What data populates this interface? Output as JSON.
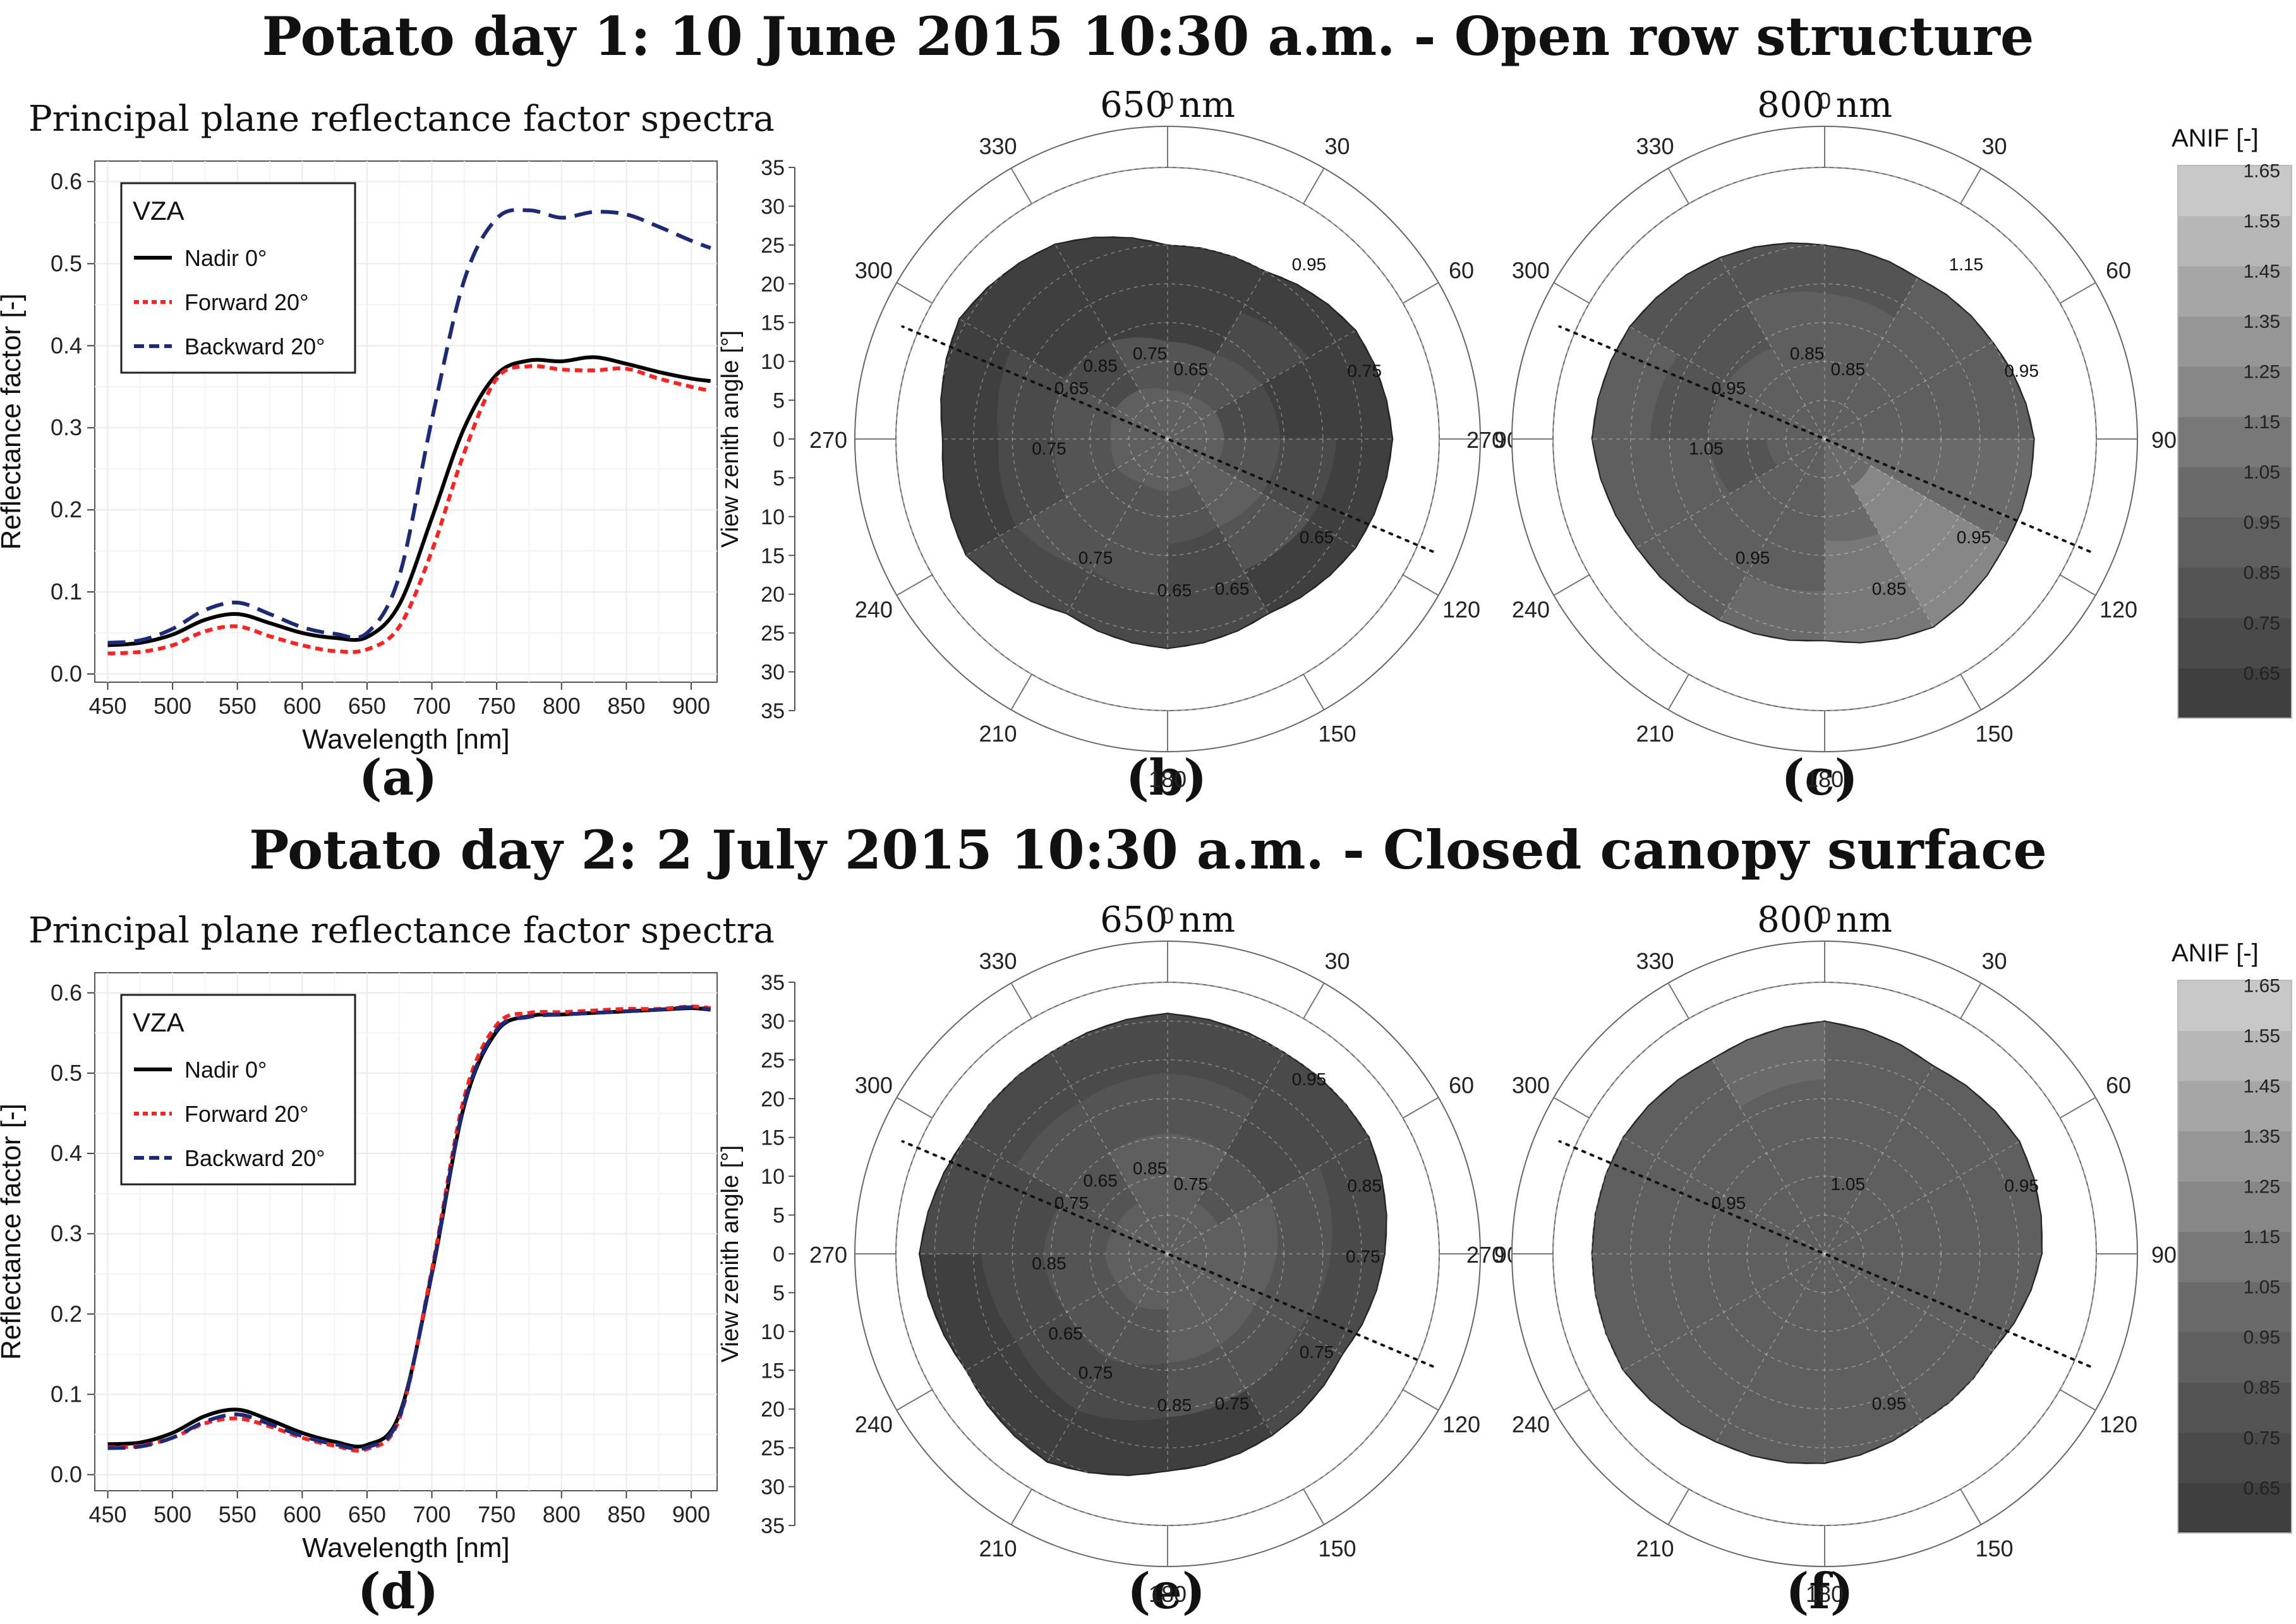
{
  "rows": [
    {
      "title": "Potato day 1: 10 June 2015 10:30 a.m. - Open row structure",
      "spectra_title": "Principal plane reflectance factor spectra",
      "polar_titles": [
        "650 nm",
        "800 nm"
      ],
      "panel_labels": [
        "(a)",
        "(b)",
        "(c)"
      ],
      "colorbar_title": "ANIF [-]"
    },
    {
      "title": "Potato day 2: 2 July 2015 10:30 a.m. - Closed canopy surface",
      "spectra_title": "Principal plane reflectance factor spectra",
      "polar_titles": [
        "650 nm",
        "800 nm"
      ],
      "panel_labels": [
        "(d)",
        "(e)",
        "(f)"
      ],
      "colorbar_title": "ANIF [-]"
    }
  ],
  "colors": {
    "nadir": "#000000",
    "forward": "#ff2020",
    "backward": "#1e2a78",
    "panel_bg": "#ffffff",
    "grid": "#ebebeb"
  },
  "chart_data": [
    {
      "id": "a",
      "type": "line",
      "title": "Principal plane reflectance factor spectra",
      "xlabel": "Wavelength [nm]",
      "ylabel": "Reflectance factor [-]",
      "xlim": [
        440,
        920
      ],
      "ylim": [
        -0.01,
        0.625
      ],
      "xticks": [
        450,
        500,
        550,
        600,
        650,
        700,
        750,
        800,
        850,
        900
      ],
      "yticks": [
        0.0,
        0.1,
        0.2,
        0.3,
        0.4,
        0.5,
        0.6
      ],
      "legend_title": "VZA",
      "legend_position": "top-left",
      "x": [
        450,
        475,
        500,
        525,
        550,
        575,
        600,
        625,
        650,
        675,
        700,
        725,
        750,
        775,
        800,
        825,
        850,
        875,
        900,
        915
      ],
      "series": [
        {
          "name": "Nadir 0°",
          "style": "solid",
          "values": [
            0.035,
            0.038,
            0.048,
            0.066,
            0.073,
            0.062,
            0.05,
            0.044,
            0.045,
            0.085,
            0.19,
            0.3,
            0.365,
            0.382,
            0.381,
            0.386,
            0.378,
            0.368,
            0.36,
            0.357
          ]
        },
        {
          "name": "Forward 20°",
          "style": "dotted",
          "values": [
            0.025,
            0.027,
            0.035,
            0.052,
            0.058,
            0.046,
            0.035,
            0.028,
            0.03,
            0.058,
            0.15,
            0.27,
            0.36,
            0.375,
            0.371,
            0.37,
            0.372,
            0.36,
            0.35,
            0.345
          ]
        },
        {
          "name": "Backward 20°",
          "style": "dashed",
          "values": [
            0.038,
            0.041,
            0.055,
            0.078,
            0.087,
            0.073,
            0.057,
            0.049,
            0.05,
            0.12,
            0.31,
            0.48,
            0.555,
            0.565,
            0.556,
            0.563,
            0.56,
            0.545,
            0.528,
            0.519
          ]
        }
      ]
    },
    {
      "id": "b",
      "type": "heatmap",
      "subtype": "polar-contour",
      "title": "650 nm",
      "ylabel": "View zenith angle [°]",
      "rlim": [
        0,
        35
      ],
      "r_ticks": [
        35,
        30,
        25,
        20,
        15,
        10,
        5,
        0,
        5,
        10,
        15,
        20,
        25,
        30,
        35
      ],
      "azimuth_ticks": [
        0,
        30,
        60,
        90,
        120,
        150,
        180,
        210,
        240,
        270,
        300,
        330
      ],
      "contour_levels": [
        0.65,
        0.75,
        0.85,
        0.95
      ],
      "contour_labels": [
        "0.65",
        "0.65",
        "0.65",
        "0.75",
        "0.75",
        "0.75",
        "0.65",
        "0.75",
        "0.95",
        "0.65",
        "0.85"
      ],
      "principal_plane_azimuth": [
        113,
        293
      ],
      "coverage_zenith_by_azimuth": [
        25,
        25,
        28,
        29,
        28,
        26,
        27,
        26,
        30,
        29,
        31,
        29
      ],
      "grid": [
        [
          0.62,
          0.65,
          0.64,
          0.63,
          0.66,
          0.72,
          0.7,
          0.72,
          0.66,
          0.64,
          0.62,
          0.63
        ],
        [
          0.68,
          0.7,
          0.68,
          0.76,
          0.8,
          0.78,
          0.82,
          0.8,
          0.76,
          0.74,
          0.66,
          0.66
        ],
        [
          0.85,
          0.82,
          0.78,
          0.86,
          0.9,
          0.88,
          0.88,
          0.84,
          0.84,
          0.82,
          0.76,
          0.8
        ],
        [
          0.95,
          0.93,
          0.92,
          0.96,
          0.95,
          0.94,
          0.92,
          0.9,
          0.92,
          0.94,
          0.9,
          0.94
        ]
      ]
    },
    {
      "id": "c",
      "type": "heatmap",
      "subtype": "polar-contour",
      "title": "800 nm",
      "rlim": [
        0,
        35
      ],
      "azimuth_ticks": [
        0,
        30,
        60,
        90,
        120,
        150,
        180,
        210,
        240,
        270,
        300,
        330
      ],
      "contour_levels": [
        0.85,
        0.95,
        1.05,
        1.15,
        1.25
      ],
      "contour_labels": [
        "0.85",
        "0.85",
        "0.95",
        "0.95",
        "0.95",
        "0.85",
        "0.95",
        "1.05",
        "1.15"
      ],
      "principal_plane_azimuth": [
        113,
        293
      ],
      "coverage_zenith_by_azimuth": [
        25,
        24,
        25,
        27,
        27,
        28,
        26,
        27,
        28,
        30,
        29,
        27
      ],
      "grid": [
        [
          0.86,
          0.92,
          0.95,
          1.05,
          1.2,
          1.1,
          1.0,
          0.96,
          0.94,
          0.92,
          0.86,
          0.88
        ],
        [
          0.92,
          0.94,
          0.96,
          1.05,
          1.28,
          1.15,
          0.98,
          0.94,
          0.9,
          0.88,
          0.86,
          0.9
        ],
        [
          0.94,
          0.95,
          0.97,
          1.08,
          1.22,
          1.08,
          0.97,
          0.9,
          0.86,
          0.9,
          0.92,
          0.93
        ],
        [
          0.96,
          0.96,
          0.98,
          1.02,
          1.06,
          1.0,
          0.97,
          0.94,
          0.92,
          0.94,
          0.95,
          0.96
        ]
      ]
    },
    {
      "id": "d",
      "type": "line",
      "title": "Principal plane reflectance factor spectra",
      "xlabel": "Wavelength [nm]",
      "ylabel": "Reflectance factor [-]",
      "xlim": [
        440,
        920
      ],
      "ylim": [
        -0.02,
        0.625
      ],
      "xticks": [
        450,
        500,
        550,
        600,
        650,
        700,
        750,
        800,
        850,
        900
      ],
      "yticks": [
        0.0,
        0.1,
        0.2,
        0.3,
        0.4,
        0.5,
        0.6
      ],
      "legend_title": "VZA",
      "legend_position": "top-left",
      "x": [
        450,
        475,
        500,
        525,
        550,
        575,
        600,
        625,
        650,
        675,
        700,
        725,
        750,
        775,
        800,
        825,
        850,
        875,
        900,
        915
      ],
      "series": [
        {
          "name": "Nadir 0°",
          "style": "solid",
          "values": [
            0.038,
            0.04,
            0.052,
            0.073,
            0.081,
            0.068,
            0.052,
            0.041,
            0.037,
            0.075,
            0.25,
            0.46,
            0.552,
            0.571,
            0.573,
            0.575,
            0.577,
            0.579,
            0.581,
            0.579
          ]
        },
        {
          "name": "Forward 20°",
          "style": "dotted",
          "values": [
            0.034,
            0.036,
            0.046,
            0.064,
            0.07,
            0.06,
            0.046,
            0.036,
            0.032,
            0.07,
            0.255,
            0.47,
            0.56,
            0.575,
            0.576,
            0.578,
            0.58,
            0.58,
            0.583,
            0.581
          ]
        },
        {
          "name": "Backward 20°",
          "style": "dashed",
          "values": [
            0.033,
            0.035,
            0.046,
            0.066,
            0.075,
            0.063,
            0.048,
            0.038,
            0.034,
            0.072,
            0.252,
            0.462,
            0.554,
            0.57,
            0.573,
            0.575,
            0.577,
            0.579,
            0.582,
            0.579
          ]
        }
      ]
    },
    {
      "id": "e",
      "type": "heatmap",
      "subtype": "polar-contour",
      "title": "650 nm",
      "ylabel": "View zenith angle [°]",
      "rlim": [
        0,
        35
      ],
      "r_ticks": [
        35,
        30,
        25,
        20,
        15,
        10,
        5,
        0,
        5,
        10,
        15,
        20,
        25,
        30,
        35
      ],
      "azimuth_ticks": [
        0,
        30,
        60,
        90,
        120,
        150,
        180,
        210,
        240,
        270,
        300,
        330
      ],
      "contour_levels": [
        0.65,
        0.75,
        0.85,
        0.95
      ],
      "contour_labels": [
        "0.75",
        "0.75",
        "0.75",
        "0.85",
        "0.75",
        "0.85",
        "0.75",
        "0.85",
        "0.95",
        "0.85",
        "0.65",
        "0.75",
        "0.65"
      ],
      "principal_plane_azimuth": [
        113,
        293
      ],
      "coverage_zenith_by_azimuth": [
        31,
        30,
        30,
        28,
        26,
        27,
        28,
        31,
        30,
        32,
        30,
        30
      ],
      "grid": [
        [
          0.7,
          0.74,
          0.72,
          0.76,
          0.78,
          0.68,
          0.66,
          0.64,
          0.64,
          0.7,
          0.72,
          0.7
        ],
        [
          0.82,
          0.78,
          0.8,
          0.84,
          0.86,
          0.8,
          0.74,
          0.7,
          0.72,
          0.76,
          0.8,
          0.8
        ],
        [
          0.92,
          0.88,
          0.9,
          0.92,
          0.94,
          0.9,
          0.84,
          0.8,
          0.82,
          0.86,
          0.88,
          0.9
        ],
        [
          0.95,
          0.92,
          0.95,
          0.96,
          0.96,
          0.94,
          0.92,
          0.9,
          0.92,
          0.94,
          0.95,
          0.96
        ]
      ]
    },
    {
      "id": "f",
      "type": "heatmap",
      "subtype": "polar-contour",
      "title": "800 nm",
      "rlim": [
        0,
        35
      ],
      "azimuth_ticks": [
        0,
        30,
        60,
        90,
        120,
        150,
        180,
        210,
        240,
        270,
        300,
        330
      ],
      "contour_levels": [
        0.95,
        1.05
      ],
      "contour_labels": [
        "1.05",
        "0.95",
        "0.95",
        "0.95"
      ],
      "principal_plane_azimuth": [
        113,
        293
      ],
      "coverage_zenith_by_azimuth": [
        30,
        28,
        29,
        28,
        25,
        25,
        27,
        28,
        30,
        30,
        30,
        29
      ],
      "grid": [
        [
          0.99,
          0.98,
          0.99,
          0.98,
          0.96,
          0.97,
          0.99,
          0.98,
          0.99,
          0.98,
          0.99,
          1.0
        ],
        [
          0.98,
          0.99,
          0.97,
          0.98,
          0.99,
          0.99,
          0.98,
          0.97,
          0.99,
          0.99,
          0.98,
          0.98
        ],
        [
          0.99,
          0.98,
          0.98,
          0.97,
          0.98,
          0.99,
          0.98,
          0.99,
          0.98,
          0.97,
          0.99,
          0.98
        ],
        [
          0.98,
          0.99,
          0.99,
          0.98,
          0.99,
          0.98,
          0.99,
          0.98,
          0.99,
          0.99,
          0.98,
          0.99
        ]
      ]
    },
    {
      "id": "colorbar",
      "type": "heatmap",
      "subtype": "colorbar",
      "title": "ANIF [-]",
      "levels": [
        0.6,
        0.7,
        0.8,
        0.9,
        1.0,
        1.1,
        1.2,
        1.3,
        1.4,
        1.5,
        1.6,
        1.7
      ],
      "tick_labels": [
        "0.65",
        "0.75",
        "0.85",
        "0.95",
        "1.05",
        "1.15",
        "1.25",
        "1.35",
        "1.45",
        "1.55",
        "1.65"
      ]
    }
  ]
}
